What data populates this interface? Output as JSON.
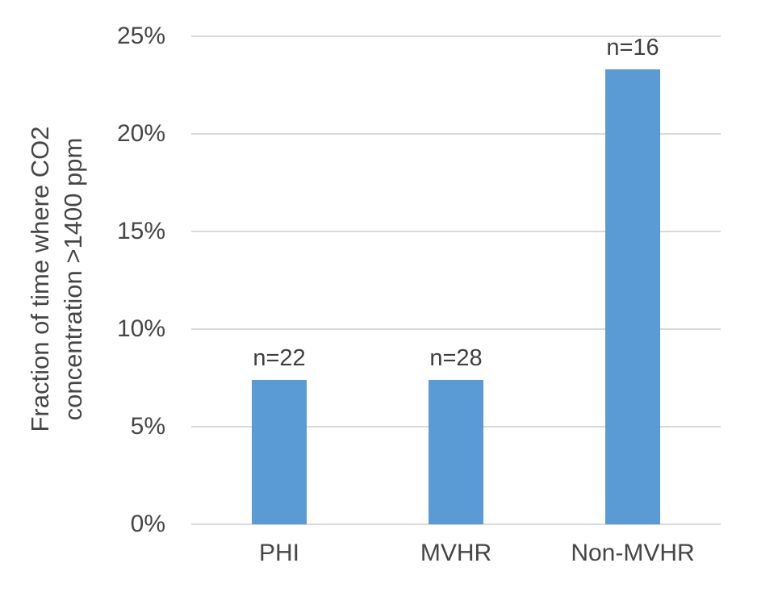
{
  "chart_data": {
    "type": "bar",
    "title": "",
    "categories": [
      "PHI",
      "MVHR",
      "Non-MVHR"
    ],
    "values": [
      7.4,
      7.4,
      23.3
    ],
    "value_unit": "percent",
    "bar_labels": [
      "n=22",
      "n=28",
      "n=16"
    ],
    "ylabel": "Fraction of time where CO2 concentration >1400 ppm",
    "ylabel_lines": [
      "Fraction of time where CO2",
      "concentration >1400 ppm"
    ],
    "xlabel": "",
    "ylim": [
      0,
      25
    ],
    "yticks": [
      0,
      5,
      10,
      15,
      20,
      25
    ],
    "ytick_suffix": "%",
    "grid": true,
    "legend": "none",
    "colors": {
      "bar": "#5B9BD5",
      "gridline": "#D9D9D9",
      "axis_line": "#D9D9D9",
      "text": "#464646",
      "background": "#FFFFFF"
    }
  }
}
